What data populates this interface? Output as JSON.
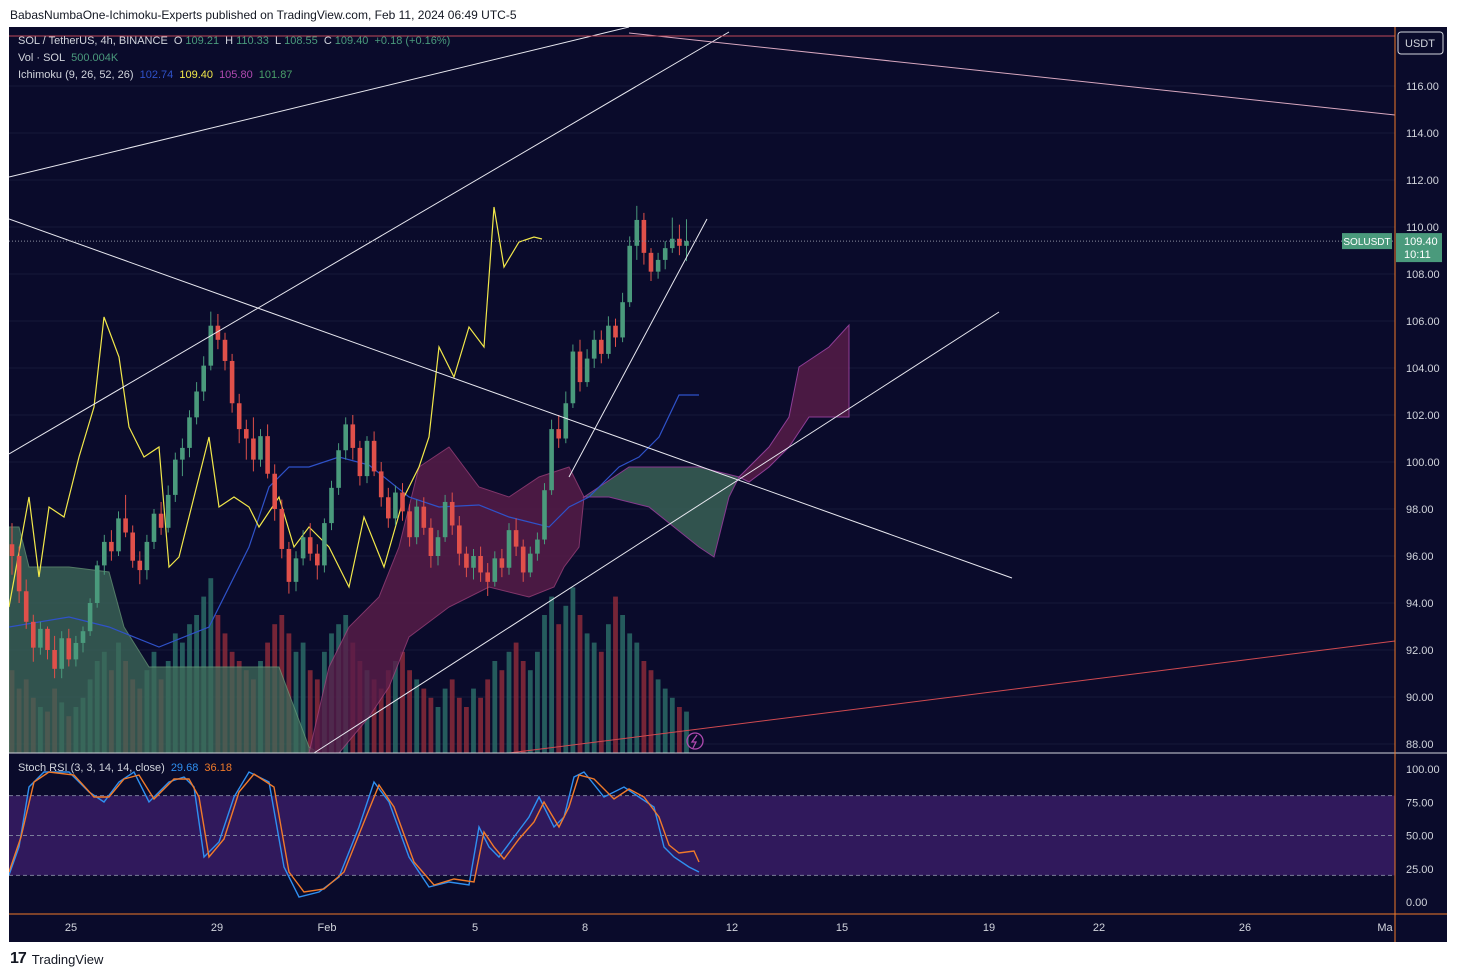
{
  "header": {
    "publisher": "BabasNumbaOne-Ichimoku-Experts published on TradingView.com, Feb 11, 2024 06:49 UTC-5"
  },
  "legend": {
    "symbol_line": "SOL / TetherUS, 4h, BINANCE",
    "o_label": "O",
    "o_value": "109.21",
    "h_label": "H",
    "h_value": "110.33",
    "l_label": "L",
    "l_value": "108.55",
    "c_label": "C",
    "c_value": "109.40",
    "change": "+0.18 (+0.16%)",
    "vol_label": "Vol · SOL",
    "vol_value": "500.004K",
    "ichimoku_label": "Ichimoku (9, 26, 52, 26)",
    "ichimoku_values": [
      "102.74",
      "109.40",
      "105.80",
      "101.87"
    ],
    "stoch_label": "Stoch RSI (3, 3, 14, 14, close)",
    "stoch_k": "29.68",
    "stoch_d": "36.18"
  },
  "price_axis": {
    "currency": "USDT",
    "labels": [
      "116.00",
      "114.00",
      "112.00",
      "110.00",
      "108.00",
      "106.00",
      "104.00",
      "102.00",
      "100.00",
      "98.00",
      "96.00",
      "94.00",
      "92.00",
      "90.00",
      "88.00"
    ],
    "last_price": "109.40",
    "countdown": "10:11",
    "symbol_tag": "SOLUSDT"
  },
  "rsi_axis": {
    "labels": [
      "100.00",
      "75.00",
      "50.00",
      "25.00",
      "0.00"
    ]
  },
  "time_axis": {
    "labels": [
      "25",
      "29",
      "Feb",
      "5",
      "8",
      "12",
      "15",
      "19",
      "22",
      "26",
      "Ma"
    ]
  },
  "colors": {
    "background": "#0a0b2b",
    "up": "#4a9a7c",
    "down": "#e0504a",
    "tenkan": "#2f52c9",
    "chikou": "#f2e84a",
    "cloud_bull": "#3f6b5a",
    "cloud_bear": "#5a1d4a",
    "stoch_k": "#2f8ff0",
    "stoch_d": "#f07a2a"
  },
  "chart_data": {
    "type": "candlestick",
    "ylim": [
      87.5,
      117.5
    ],
    "candles": [
      [
        96.5,
        97.4,
        95.2,
        96.0
      ],
      [
        96.0,
        96.4,
        94.0,
        94.5
      ],
      [
        94.5,
        95.0,
        92.9,
        93.2
      ],
      [
        93.2,
        93.5,
        91.5,
        92.1
      ],
      [
        92.1,
        93.2,
        91.8,
        92.9
      ],
      [
        92.9,
        93.0,
        91.6,
        92.0
      ],
      [
        92.0,
        92.6,
        90.8,
        91.2
      ],
      [
        91.2,
        92.8,
        90.8,
        92.5
      ],
      [
        92.5,
        92.9,
        91.3,
        91.6
      ],
      [
        91.6,
        92.6,
        91.3,
        92.3
      ],
      [
        92.3,
        93.0,
        91.9,
        92.8
      ],
      [
        92.8,
        94.2,
        92.6,
        94.0
      ],
      [
        94.0,
        95.8,
        93.8,
        95.6
      ],
      [
        95.6,
        96.9,
        95.2,
        96.6
      ],
      [
        96.6,
        97.1,
        95.8,
        96.2
      ],
      [
        96.2,
        97.9,
        96.0,
        97.6
      ],
      [
        97.6,
        98.6,
        96.8,
        97.0
      ],
      [
        97.0,
        97.3,
        95.5,
        95.8
      ],
      [
        95.8,
        96.2,
        94.8,
        95.4
      ],
      [
        95.4,
        96.9,
        95.0,
        96.6
      ],
      [
        96.6,
        98.0,
        96.3,
        97.8
      ],
      [
        97.8,
        98.3,
        96.9,
        97.2
      ],
      [
        97.2,
        99.0,
        97.0,
        98.6
      ],
      [
        98.6,
        100.4,
        98.3,
        100.1
      ],
      [
        100.1,
        101.0,
        99.4,
        100.6
      ],
      [
        100.6,
        102.2,
        100.2,
        101.9
      ],
      [
        101.9,
        103.4,
        101.6,
        103.0
      ],
      [
        103.0,
        104.5,
        102.6,
        104.1
      ],
      [
        104.1,
        106.4,
        103.9,
        105.8
      ],
      [
        105.8,
        106.3,
        104.8,
        105.2
      ],
      [
        105.2,
        105.5,
        103.9,
        104.3
      ],
      [
        104.3,
        104.6,
        102.1,
        102.5
      ],
      [
        102.5,
        102.9,
        100.8,
        101.4
      ],
      [
        101.4,
        101.8,
        100.1,
        101.0
      ],
      [
        101.0,
        101.9,
        99.6,
        100.1
      ],
      [
        100.1,
        101.4,
        99.8,
        101.1
      ],
      [
        101.1,
        101.6,
        99.3,
        99.5
      ],
      [
        99.5,
        99.9,
        97.5,
        98.0
      ],
      [
        98.0,
        98.4,
        95.9,
        96.3
      ],
      [
        96.3,
        96.6,
        94.4,
        94.9
      ],
      [
        94.9,
        96.2,
        94.5,
        95.9
      ],
      [
        95.9,
        97.1,
        95.6,
        96.8
      ],
      [
        96.8,
        97.4,
        95.8,
        96.1
      ],
      [
        96.1,
        96.5,
        95.0,
        95.6
      ],
      [
        95.6,
        97.6,
        95.3,
        97.4
      ],
      [
        97.4,
        99.2,
        97.1,
        98.9
      ],
      [
        98.9,
        100.8,
        98.6,
        100.5
      ],
      [
        100.5,
        101.9,
        100.1,
        101.6
      ],
      [
        101.6,
        102.0,
        100.1,
        100.6
      ],
      [
        100.6,
        100.9,
        99.0,
        99.4
      ],
      [
        99.4,
        101.1,
        99.1,
        100.9
      ],
      [
        100.9,
        101.3,
        99.4,
        99.6
      ],
      [
        99.6,
        100.0,
        98.1,
        98.5
      ],
      [
        98.5,
        98.9,
        97.2,
        97.6
      ],
      [
        97.6,
        99.0,
        97.3,
        98.7
      ],
      [
        98.7,
        99.1,
        97.5,
        97.9
      ],
      [
        97.9,
        98.2,
        96.4,
        96.8
      ],
      [
        96.8,
        98.4,
        96.5,
        98.1
      ],
      [
        98.1,
        98.5,
        96.9,
        97.2
      ],
      [
        97.2,
        97.6,
        95.5,
        96.0
      ],
      [
        96.0,
        97.1,
        95.6,
        96.8
      ],
      [
        96.8,
        98.6,
        96.6,
        98.3
      ],
      [
        98.3,
        98.7,
        96.9,
        97.3
      ],
      [
        97.3,
        97.7,
        95.6,
        96.1
      ],
      [
        96.1,
        96.4,
        95.1,
        95.5
      ],
      [
        95.5,
        96.3,
        95.0,
        96.0
      ],
      [
        96.0,
        96.4,
        94.9,
        95.3
      ],
      [
        95.3,
        95.7,
        94.3,
        94.9
      ],
      [
        94.9,
        96.2,
        94.7,
        95.9
      ],
      [
        95.9,
        96.3,
        95.1,
        95.5
      ],
      [
        95.5,
        97.4,
        95.2,
        97.1
      ],
      [
        97.1,
        97.6,
        96.0,
        96.4
      ],
      [
        96.4,
        96.7,
        94.9,
        95.3
      ],
      [
        95.3,
        96.4,
        95.1,
        96.1
      ],
      [
        96.1,
        97.0,
        95.8,
        96.7
      ],
      [
        96.7,
        99.1,
        96.5,
        98.8
      ],
      [
        98.8,
        101.8,
        98.6,
        101.4
      ],
      [
        101.4,
        102.0,
        100.6,
        101.0
      ],
      [
        101.0,
        103.0,
        100.8,
        102.5
      ],
      [
        102.5,
        105.0,
        102.3,
        104.7
      ],
      [
        104.7,
        105.2,
        103.0,
        103.4
      ],
      [
        103.4,
        104.8,
        103.2,
        104.4
      ],
      [
        104.4,
        105.6,
        104.0,
        105.2
      ],
      [
        105.2,
        105.6,
        104.2,
        104.6
      ],
      [
        104.6,
        106.2,
        104.4,
        105.8
      ],
      [
        105.8,
        106.1,
        104.9,
        105.3
      ],
      [
        105.3,
        107.2,
        105.1,
        106.8
      ],
      [
        106.8,
        109.6,
        106.6,
        109.2
      ],
      [
        109.2,
        110.9,
        108.6,
        110.3
      ],
      [
        110.3,
        110.6,
        108.4,
        108.9
      ],
      [
        108.9,
        109.1,
        107.7,
        108.1
      ],
      [
        108.1,
        108.9,
        107.8,
        108.6
      ],
      [
        108.6,
        109.4,
        108.2,
        109.1
      ],
      [
        109.1,
        110.4,
        108.9,
        109.5
      ],
      [
        109.5,
        110.1,
        108.8,
        109.2
      ],
      [
        109.2,
        110.33,
        108.55,
        109.4
      ]
    ],
    "volume": [
      18,
      14,
      16,
      12,
      10,
      9,
      14,
      11,
      8,
      10,
      12,
      16,
      20,
      22,
      18,
      24,
      20,
      16,
      14,
      18,
      22,
      16,
      20,
      26,
      24,
      28,
      30,
      34,
      38,
      30,
      26,
      22,
      20,
      18,
      16,
      20,
      24,
      28,
      30,
      26,
      22,
      24,
      18,
      16,
      22,
      26,
      28,
      30,
      24,
      20,
      18,
      16,
      14,
      18,
      20,
      22,
      18,
      16,
      14,
      12,
      10,
      14,
      16,
      12,
      10,
      14,
      12,
      16,
      20,
      18,
      22,
      24,
      20,
      18,
      22,
      30,
      34,
      28,
      32,
      36,
      30,
      26,
      24,
      22,
      28,
      34,
      30,
      26,
      24,
      20,
      18,
      16,
      14,
      12,
      10,
      9
    ]
  }
}
